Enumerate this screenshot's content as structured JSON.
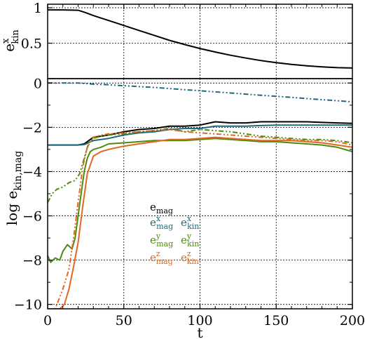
{
  "chart_data": [
    {
      "type": "line",
      "panel": "top",
      "ylabel": "e",
      "ylabel_sub": "kin",
      "ylabel_sup": "x",
      "xlim": [
        0,
        200
      ],
      "ylim": [
        0,
        1.05
      ],
      "yticks": [
        0,
        0.5,
        1
      ],
      "ytick_labels": [
        "",
        "0.5",
        "1"
      ],
      "grid": true,
      "series": [
        {
          "color": "#000000",
          "style": "solid",
          "x": [
            0,
            10,
            20,
            25,
            30,
            40,
            50,
            60,
            70,
            80,
            90,
            100,
            110,
            120,
            130,
            140,
            150,
            160,
            170,
            180,
            190,
            200
          ],
          "y": [
            0.97,
            0.97,
            0.965,
            0.93,
            0.89,
            0.82,
            0.75,
            0.68,
            0.61,
            0.54,
            0.48,
            0.425,
            0.375,
            0.33,
            0.29,
            0.255,
            0.225,
            0.2,
            0.18,
            0.165,
            0.155,
            0.15
          ]
        }
      ]
    },
    {
      "type": "line",
      "panel": "bottom",
      "xlabel": "t",
      "ylabel": "log e",
      "ylabel_sub": "kin,mag",
      "xlim": [
        0,
        200
      ],
      "ylim": [
        -10.2,
        0.2
      ],
      "xticks": [
        0,
        50,
        100,
        150,
        200
      ],
      "yticks": [
        0,
        -2,
        -4,
        -6,
        -8,
        -10
      ],
      "grid": true,
      "legend": {
        "placement": "center-left",
        "entries": [
          {
            "base": "e",
            "sup": "",
            "sub": "mag",
            "color": "#000000"
          },
          {
            "base": "e",
            "sup": "x",
            "sub": "mag",
            "color": "#1f6a7a"
          },
          {
            "base": "e",
            "sup": "x",
            "sub": "kin",
            "color": "#1f6a7a"
          },
          {
            "base": "e",
            "sup": "y",
            "sub": "mag",
            "color": "#4f8a10"
          },
          {
            "base": "e",
            "sup": "y",
            "sub": "kin",
            "color": "#4f8a10"
          },
          {
            "base": "e",
            "sup": "z",
            "sub": "mag",
            "color": "#e06820"
          },
          {
            "base": "e",
            "sup": "z",
            "sub": "kin",
            "color": "#e06820"
          }
        ]
      },
      "series": [
        {
          "color": "#000000",
          "style": "solid",
          "x": [
            0,
            10,
            20,
            24,
            30,
            40,
            50,
            60,
            70,
            80,
            90,
            100,
            110,
            120,
            130,
            140,
            150,
            160,
            170,
            180,
            190,
            200
          ],
          "y": [
            -2.8,
            -2.8,
            -2.8,
            -2.75,
            -2.45,
            -2.35,
            -2.2,
            -2.1,
            -2.05,
            -1.95,
            -1.95,
            -1.9,
            -1.75,
            -1.8,
            -1.8,
            -1.75,
            -1.75,
            -1.75,
            -1.75,
            -1.78,
            -1.8,
            -1.82
          ]
        },
        {
          "color": "#1f6a7a",
          "style": "solid",
          "x": [
            0,
            10,
            20,
            24,
            30,
            40,
            50,
            60,
            70,
            80,
            90,
            100,
            110,
            120,
            130,
            140,
            150,
            160,
            170,
            180,
            190,
            200
          ],
          "y": [
            -2.8,
            -2.8,
            -2.8,
            -2.78,
            -2.6,
            -2.5,
            -2.35,
            -2.25,
            -2.2,
            -2.1,
            -2.05,
            -2.05,
            -1.95,
            -1.95,
            -1.95,
            -1.92,
            -1.9,
            -1.9,
            -1.9,
            -1.9,
            -1.9,
            -1.9
          ]
        },
        {
          "color": "#1f6a7a",
          "style": "dashdotdot",
          "x": [
            0,
            20,
            30,
            40,
            50,
            60,
            70,
            80,
            90,
            100,
            110,
            120,
            130,
            140,
            150,
            160,
            170,
            180,
            190,
            200
          ],
          "y": [
            0.0,
            0.0,
            -0.05,
            -0.08,
            -0.12,
            -0.16,
            -0.2,
            -0.25,
            -0.3,
            -0.35,
            -0.4,
            -0.45,
            -0.5,
            -0.55,
            -0.6,
            -0.65,
            -0.7,
            -0.75,
            -0.8,
            -0.85
          ]
        },
        {
          "color": "#4f8a10",
          "style": "solid",
          "x": [
            0,
            2,
            5,
            8,
            10,
            13,
            16,
            18,
            20,
            22,
            24,
            26,
            28,
            30,
            35,
            40,
            50,
            60,
            70,
            80,
            90,
            100,
            110,
            120,
            130,
            140,
            150,
            160,
            170,
            180,
            190,
            200
          ],
          "y": [
            -7.8,
            -8.1,
            -7.9,
            -8.0,
            -7.6,
            -7.3,
            -7.5,
            -7.0,
            -6.0,
            -5.0,
            -4.0,
            -3.4,
            -3.1,
            -3.0,
            -2.9,
            -2.75,
            -2.7,
            -2.65,
            -2.6,
            -2.6,
            -2.6,
            -2.55,
            -2.5,
            -2.55,
            -2.6,
            -2.65,
            -2.65,
            -2.7,
            -2.75,
            -2.8,
            -2.9,
            -3.1
          ]
        },
        {
          "color": "#4f8a10",
          "style": "dashdotdot",
          "x": [
            0,
            3,
            6,
            10,
            14,
            18,
            21,
            24,
            27,
            30,
            35,
            40,
            50,
            60,
            70,
            80,
            90,
            100,
            110,
            120,
            130,
            140,
            150,
            160,
            170,
            180,
            190,
            200
          ],
          "y": [
            -5.4,
            -5.0,
            -4.8,
            -4.7,
            -4.5,
            -4.4,
            -4.1,
            -3.4,
            -2.7,
            -2.5,
            -2.4,
            -2.35,
            -2.3,
            -2.2,
            -2.15,
            -2.05,
            -2.2,
            -2.1,
            -2.15,
            -2.2,
            -2.3,
            -2.4,
            -2.45,
            -2.5,
            -2.55,
            -2.55,
            -2.6,
            -2.7
          ]
        },
        {
          "color": "#e06820",
          "style": "solid",
          "x": [
            0,
            5,
            8,
            11,
            14,
            17,
            20,
            23,
            26,
            30,
            35,
            40,
            50,
            60,
            70,
            80,
            90,
            100,
            110,
            120,
            130,
            140,
            150,
            160,
            170,
            180,
            190,
            200
          ],
          "y": [
            -10.2,
            -10.2,
            -10.2,
            -10.0,
            -9.3,
            -8.3,
            -7.2,
            -5.6,
            -4.1,
            -3.3,
            -3.1,
            -3.0,
            -2.85,
            -2.75,
            -2.65,
            -2.55,
            -2.55,
            -2.5,
            -2.45,
            -2.5,
            -2.55,
            -2.6,
            -2.6,
            -2.6,
            -2.65,
            -2.7,
            -2.8,
            -2.9
          ]
        },
        {
          "color": "#e06820",
          "style": "dashdotdot",
          "x": [
            0,
            5,
            10,
            14,
            17,
            20,
            23,
            26,
            30,
            35,
            40,
            50,
            60,
            70,
            80,
            90,
            100,
            110,
            120,
            130,
            140,
            150,
            160,
            170,
            180,
            190,
            200
          ],
          "y": [
            -10.2,
            -10.2,
            -9.3,
            -8.4,
            -7.0,
            -5.4,
            -3.8,
            -2.9,
            -2.45,
            -2.35,
            -2.3,
            -2.25,
            -2.2,
            -2.15,
            -2.1,
            -2.2,
            -2.25,
            -2.3,
            -2.35,
            -2.4,
            -2.45,
            -2.5,
            -2.55,
            -2.6,
            -2.6,
            -2.65,
            -2.8
          ]
        }
      ]
    }
  ]
}
